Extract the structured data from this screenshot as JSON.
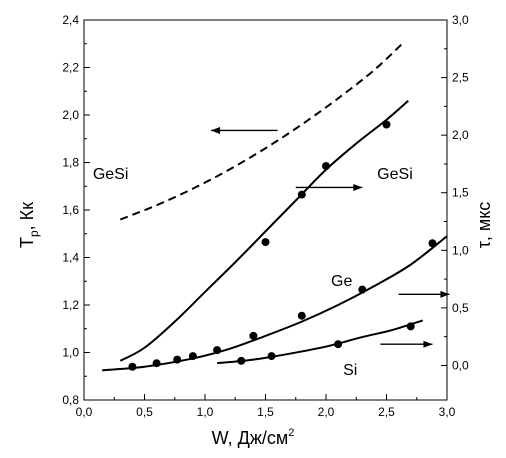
{
  "chart_data": {
    "type": "line",
    "xlabel": "W, Дж/см",
    "xlabel_sup": "2",
    "ylabel_left": "T",
    "ylabel_left_sub": "p",
    "ylabel_left_unit": ",  Кк",
    "ylabel_right": "τ, мкс",
    "xlim": [
      0.0,
      3.0
    ],
    "ylim_left": [
      0.8,
      2.4
    ],
    "ylim_right": [
      -0.3,
      3.0
    ],
    "xticks": [
      "0,0",
      "0,5",
      "1,0",
      "1,5",
      "2,0",
      "2,5",
      "3,0"
    ],
    "yticks_left": [
      "0,8",
      "1,0",
      "1,2",
      "1,4",
      "1,6",
      "1,8",
      "2,0",
      "2,2",
      "2,4"
    ],
    "yticks_right": [
      "0,0",
      "0,5",
      "1,0",
      "1,5",
      "2,0",
      "2,5",
      "3,0"
    ],
    "series": [
      {
        "name": "GeSi",
        "axis": "left",
        "style": "dashed",
        "x": [
          0.3,
          0.6,
          0.9,
          1.2,
          1.5,
          1.8,
          2.1,
          2.4,
          2.65
        ],
        "y": [
          1.56,
          1.62,
          1.69,
          1.77,
          1.86,
          1.96,
          2.07,
          2.19,
          2.31
        ]
      },
      {
        "name": "GeSi",
        "axis": "left",
        "style": "solid",
        "x": [
          0.3,
          0.5,
          0.75,
          1.0,
          1.25,
          1.5,
          1.75,
          2.0,
          2.25,
          2.5,
          2.68
        ],
        "y": [
          0.965,
          1.02,
          1.13,
          1.255,
          1.38,
          1.51,
          1.64,
          1.77,
          1.88,
          1.98,
          2.06
        ],
        "points_x": [
          1.5,
          1.8,
          2.0,
          2.5
        ],
        "points_y": [
          1.465,
          1.665,
          1.785,
          1.96
        ]
      },
      {
        "name": "Ge",
        "axis": "left",
        "style": "solid",
        "x": [
          0.15,
          0.5,
          0.9,
          1.2,
          1.5,
          1.8,
          2.1,
          2.4,
          2.7,
          3.0
        ],
        "y": [
          0.925,
          0.94,
          0.975,
          1.015,
          1.07,
          1.13,
          1.2,
          1.28,
          1.37,
          1.49
        ],
        "points_x": [
          0.4,
          0.6,
          0.77,
          0.9,
          1.1,
          1.4,
          1.8,
          2.3,
          2.88
        ],
        "points_y": [
          0.94,
          0.955,
          0.97,
          0.985,
          1.01,
          1.07,
          1.155,
          1.265,
          1.46
        ]
      },
      {
        "name": "Si",
        "axis": "left",
        "style": "solid",
        "x": [
          1.1,
          1.4,
          1.7,
          2.0,
          2.3,
          2.55,
          2.8
        ],
        "y": [
          0.955,
          0.97,
          0.995,
          1.025,
          1.065,
          1.095,
          1.135
        ],
        "points_x": [
          1.3,
          1.55,
          2.1,
          2.7
        ],
        "points_y": [
          0.965,
          0.985,
          1.035,
          1.11
        ]
      }
    ],
    "labels": [
      {
        "text": "GeSi",
        "x": 0.22,
        "y": 1.73
      },
      {
        "text": "GeSi",
        "x": 2.57,
        "y": 1.73
      },
      {
        "text": "Ge",
        "x": 2.13,
        "y": 1.28
      },
      {
        "text": "Si",
        "x": 2.2,
        "y": 0.905
      }
    ],
    "arrows": [
      {
        "direction": "left",
        "x_from": 1.6,
        "x_to": 1.05,
        "y": 1.935
      },
      {
        "direction": "right",
        "x_from": 1.75,
        "x_to": 2.3,
        "y": 1.695
      },
      {
        "direction": "right",
        "x_from": 2.6,
        "x_to": 3.02,
        "y": 1.245
      },
      {
        "direction": "right",
        "x_from": 2.45,
        "x_to": 2.88,
        "y": 1.035
      }
    ],
    "grid": false
  }
}
